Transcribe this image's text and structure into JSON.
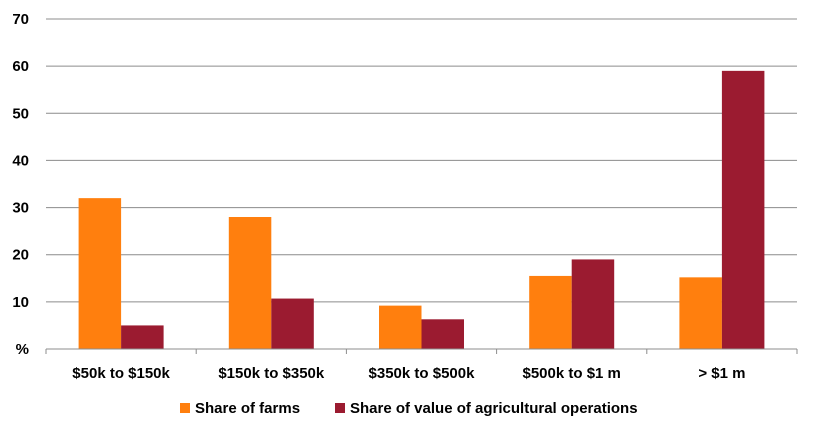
{
  "chart_data": {
    "type": "bar",
    "categories": [
      "$50k to $150k",
      "$150k to $350k",
      "$350k to $500k",
      "$500k to $1 m",
      "> $1 m"
    ],
    "series": [
      {
        "name": "Share of farms",
        "values": [
          32,
          28,
          9.2,
          15.5,
          15.2
        ],
        "color": "#FF7F0E"
      },
      {
        "name": "Share of value of agricultural operations",
        "values": [
          5,
          10.7,
          6.3,
          19,
          59
        ],
        "color": "#9B1B30"
      }
    ],
    "y_ticks": [
      "%",
      "10",
      "20",
      "30",
      "40",
      "50",
      "60",
      "70"
    ],
    "ylim": [
      0,
      70
    ],
    "grid": true,
    "legend_position": "bottom",
    "title": "",
    "xlabel": "",
    "ylabel": ""
  }
}
